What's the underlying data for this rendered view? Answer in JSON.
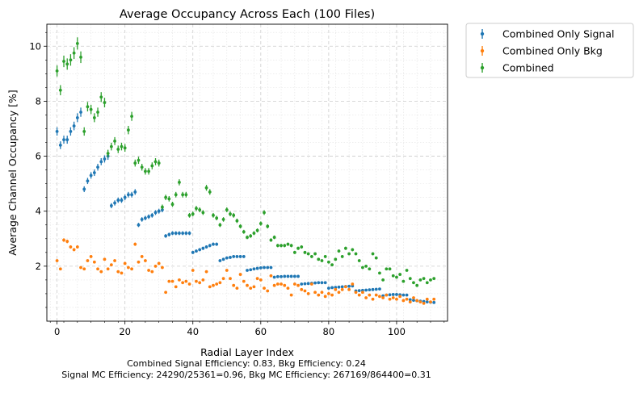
{
  "chart_data": {
    "type": "scatter",
    "title": "Average Occupancy Across Each  (100 Files)",
    "xlabel": "Radial Layer Index",
    "ylabel": "Average Channel Occupancy [%]",
    "xlim": [
      -3,
      115
    ],
    "ylim": [
      0,
      10.8
    ],
    "xticks": [
      0,
      20,
      40,
      60,
      80,
      100
    ],
    "yticks": [
      2,
      4,
      6,
      8,
      10
    ],
    "grid": true,
    "legend_position": "outside-top-right",
    "x": [
      0,
      1,
      2,
      3,
      4,
      5,
      6,
      7,
      8,
      9,
      10,
      11,
      12,
      13,
      14,
      15,
      16,
      17,
      18,
      19,
      20,
      21,
      22,
      23,
      24,
      25,
      26,
      27,
      28,
      29,
      30,
      31,
      32,
      33,
      34,
      35,
      36,
      37,
      38,
      39,
      40,
      41,
      42,
      43,
      44,
      45,
      46,
      47,
      48,
      49,
      50,
      51,
      52,
      53,
      54,
      55,
      56,
      57,
      58,
      59,
      60,
      61,
      62,
      63,
      64,
      65,
      66,
      67,
      68,
      69,
      70,
      71,
      72,
      73,
      74,
      75,
      76,
      77,
      78,
      79,
      80,
      81,
      82,
      83,
      84,
      85,
      86,
      87,
      88,
      89,
      90,
      91,
      92,
      93,
      94,
      95,
      96,
      97,
      98,
      99,
      100,
      101,
      102,
      103,
      104,
      105,
      106,
      107,
      108,
      109,
      110,
      111
    ],
    "series": [
      {
        "name": "Combined Only Signal",
        "color": "#1f77b4",
        "errorbar": true,
        "values": [
          6.9,
          6.4,
          6.6,
          6.6,
          6.9,
          7.1,
          7.4,
          7.6,
          4.8,
          5.1,
          5.3,
          5.4,
          5.6,
          5.8,
          5.9,
          6.0,
          4.2,
          4.3,
          4.4,
          4.4,
          4.5,
          4.6,
          4.6,
          4.7,
          3.5,
          3.7,
          3.75,
          3.8,
          3.85,
          3.95,
          4.0,
          4.05,
          3.1,
          3.15,
          3.2,
          3.2,
          3.2,
          3.2,
          3.2,
          3.2,
          2.5,
          2.55,
          2.6,
          2.65,
          2.7,
          2.75,
          2.8,
          2.8,
          2.2,
          2.25,
          2.3,
          2.32,
          2.35,
          2.35,
          2.35,
          2.35,
          1.85,
          1.87,
          1.9,
          1.92,
          1.94,
          1.95,
          1.95,
          1.95,
          1.6,
          1.62,
          1.62,
          1.63,
          1.63,
          1.63,
          1.63,
          1.63,
          1.35,
          1.36,
          1.37,
          1.38,
          1.39,
          1.4,
          1.4,
          1.4,
          1.2,
          1.22,
          1.23,
          1.24,
          1.25,
          1.26,
          1.27,
          1.28,
          1.1,
          1.11,
          1.12,
          1.13,
          1.14,
          1.15,
          1.16,
          1.17,
          0.92,
          0.95,
          0.96,
          0.97,
          0.97,
          0.96,
          0.95,
          0.95,
          0.78,
          0.76,
          0.74,
          0.73,
          0.72,
          0.7,
          0.69,
          0.68
        ]
      },
      {
        "name": "Combined Only Bkg",
        "color": "#ff7f0e",
        "errorbar": true,
        "values": [
          2.2,
          1.9,
          2.95,
          2.9,
          2.7,
          2.6,
          2.7,
          1.95,
          1.9,
          2.2,
          2.35,
          2.15,
          1.9,
          1.8,
          2.25,
          1.9,
          2.05,
          2.2,
          1.8,
          1.75,
          2.1,
          1.95,
          1.9,
          2.8,
          2.15,
          2.35,
          2.2,
          1.85,
          1.8,
          2.0,
          2.1,
          1.95,
          1.05,
          1.45,
          1.45,
          1.25,
          1.5,
          1.4,
          1.45,
          1.35,
          1.85,
          1.45,
          1.4,
          1.5,
          1.8,
          1.25,
          1.3,
          1.35,
          1.4,
          1.55,
          1.85,
          1.55,
          1.3,
          1.2,
          1.7,
          1.45,
          1.3,
          1.2,
          1.25,
          1.55,
          1.5,
          1.2,
          1.1,
          1.65,
          1.3,
          1.35,
          1.35,
          1.3,
          1.2,
          0.95,
          1.35,
          1.3,
          1.15,
          1.1,
          1.0,
          1.35,
          1.05,
          0.95,
          1.05,
          0.9,
          1.0,
          0.95,
          1.15,
          1.05,
          1.15,
          1.25,
          1.15,
          1.35,
          1.05,
          0.95,
          1.05,
          0.85,
          0.95,
          0.8,
          0.95,
          0.9,
          0.85,
          0.95,
          0.8,
          0.85,
          0.8,
          0.9,
          0.75,
          0.8,
          0.7,
          0.85,
          0.75,
          0.7,
          0.65,
          0.8,
          0.7,
          0.8
        ]
      },
      {
        "name": "Combined",
        "color": "#2ca02c",
        "errorbar": true,
        "values": [
          9.1,
          8.4,
          9.45,
          9.35,
          9.5,
          9.75,
          10.1,
          9.6,
          6.9,
          7.8,
          7.7,
          7.4,
          7.6,
          8.15,
          7.95,
          6.1,
          6.35,
          6.55,
          6.25,
          6.35,
          6.3,
          6.95,
          7.45,
          5.75,
          5.85,
          5.6,
          5.45,
          5.45,
          5.65,
          5.8,
          5.75,
          4.15,
          4.5,
          4.45,
          4.25,
          4.6,
          5.05,
          4.6,
          4.6,
          3.85,
          3.9,
          4.1,
          4.05,
          3.95,
          4.85,
          4.7,
          3.85,
          3.75,
          3.5,
          3.7,
          4.05,
          3.9,
          3.85,
          3.65,
          3.45,
          3.25,
          3.05,
          3.1,
          3.2,
          3.3,
          3.55,
          3.95,
          3.45,
          2.95,
          3.05,
          2.75,
          2.75,
          2.75,
          2.8,
          2.75,
          2.5,
          2.65,
          2.7,
          2.5,
          2.45,
          2.35,
          2.45,
          2.25,
          2.2,
          2.35,
          2.15,
          2.05,
          2.25,
          2.55,
          2.35,
          2.65,
          2.45,
          2.6,
          2.45,
          2.2,
          1.95,
          2.0,
          1.9,
          2.45,
          2.3,
          1.75,
          1.5,
          1.9,
          1.9,
          1.65,
          1.6,
          1.7,
          1.45,
          1.85,
          1.55,
          1.4,
          1.3,
          1.5,
          1.55,
          1.4,
          1.5,
          1.55
        ]
      }
    ]
  },
  "footer": {
    "line1": "Combined Signal Efficiency: 0.83, Bkg Efficiency: 0.24",
    "line2": "Signal MC Efficiency: 24290/25361=0.96, Bkg MC Efficiency: 267169/864400=0.31"
  }
}
